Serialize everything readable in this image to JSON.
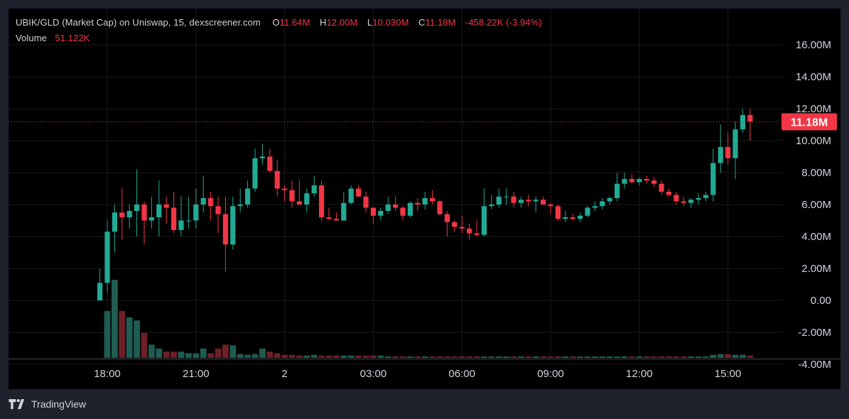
{
  "legend": {
    "pair": "UBIK/GLD (Market Cap) on Uniswap, 15, dexscreener.com",
    "o_label": "O",
    "o_value": "11.64M",
    "h_label": "H",
    "h_value": "12.00M",
    "l_label": "L",
    "l_value": "10.030M",
    "c_label": "C",
    "c_value": "11.18M",
    "change": "-458.22K (-3.94%)",
    "volume_label": "Volume",
    "volume_value": "51.122K"
  },
  "footer": {
    "brand": "TradingView",
    "logo_icon": "tradingview-logo-icon"
  },
  "colors": {
    "up": "#22ab94",
    "down": "#f23645",
    "up_volume": "#1f5c52",
    "down_volume": "#6e1f27",
    "background": "#000000",
    "frame": "#1e222d",
    "text": "#d1d4dc",
    "grid": "#1a1a1a"
  },
  "chart_data": {
    "type": "candlestick",
    "title": "UBIK/GLD (Market Cap) on Uniswap, 15, dexscreener.com",
    "interval_minutes": 15,
    "first_bar_time": "17:45",
    "y_axis": {
      "ticks": [
        "16.00M",
        "14.00M",
        "12.00M",
        "10.00M",
        "8.00M",
        "6.00M",
        "4.00M",
        "2.00M",
        "0.00",
        "-2.00M",
        "-4.00M"
      ],
      "range_millions": [
        -4.4,
        17.2
      ]
    },
    "x_axis": {
      "ticks": [
        "18:00",
        "21:00",
        "2",
        "03:00",
        "06:00",
        "09:00",
        "12:00",
        "15:00"
      ]
    },
    "last_price_label": "11.18M",
    "last_price": 11.18,
    "candles_millions_ohlc": [
      [
        0.0,
        2.0,
        0.0,
        1.1
      ],
      [
        1.1,
        5.0,
        0.5,
        4.3
      ],
      [
        4.3,
        6.0,
        3.0,
        5.5
      ],
      [
        5.5,
        7.0,
        3.8,
        5.2
      ],
      [
        5.2,
        6.0,
        4.5,
        5.6
      ],
      [
        5.6,
        8.2,
        4.0,
        6.0
      ],
      [
        6.0,
        6.2,
        3.5,
        5.0
      ],
      [
        5.0,
        6.5,
        4.5,
        5.2
      ],
      [
        5.2,
        7.5,
        4.0,
        6.0
      ],
      [
        6.0,
        6.5,
        4.8,
        5.8
      ],
      [
        5.8,
        6.8,
        4.2,
        4.4
      ],
      [
        4.4,
        6.5,
        4.0,
        5.0
      ],
      [
        5.0,
        6.5,
        4.5,
        5.0
      ],
      [
        5.0,
        7.0,
        4.5,
        6.0
      ],
      [
        6.0,
        7.8,
        5.5,
        6.4
      ],
      [
        6.4,
        6.8,
        5.0,
        5.9
      ],
      [
        5.9,
        6.5,
        4.2,
        5.4
      ],
      [
        5.4,
        6.5,
        1.8,
        3.5
      ],
      [
        3.5,
        6.5,
        3.2,
        5.9
      ],
      [
        5.9,
        7.0,
        5.5,
        6.0
      ],
      [
        6.0,
        7.5,
        5.8,
        7.0
      ],
      [
        7.0,
        9.5,
        6.8,
        8.9
      ],
      [
        8.9,
        9.8,
        8.5,
        9.0
      ],
      [
        9.0,
        9.5,
        8.0,
        8.1
      ],
      [
        8.1,
        8.8,
        6.5,
        7.0
      ],
      [
        7.0,
        7.2,
        6.2,
        6.9
      ],
      [
        6.9,
        7.5,
        5.8,
        6.2
      ],
      [
        6.2,
        7.5,
        6.0,
        6.0
      ],
      [
        6.0,
        7.0,
        5.5,
        6.7
      ],
      [
        6.7,
        7.8,
        6.5,
        7.2
      ],
      [
        7.2,
        7.5,
        5.0,
        5.2
      ],
      [
        5.2,
        5.8,
        5.0,
        5.1
      ],
      [
        5.1,
        5.5,
        5.0,
        5.0
      ],
      [
        5.0,
        6.8,
        5.0,
        6.1
      ],
      [
        6.1,
        7.2,
        6.0,
        7.0
      ],
      [
        7.0,
        7.2,
        6.5,
        6.5
      ],
      [
        6.5,
        6.8,
        5.5,
        5.8
      ],
      [
        5.8,
        5.8,
        4.8,
        5.3
      ],
      [
        5.3,
        5.8,
        5.0,
        5.6
      ],
      [
        5.6,
        6.5,
        5.4,
        6.0
      ],
      [
        6.0,
        6.5,
        5.6,
        5.8
      ],
      [
        5.8,
        5.9,
        5.0,
        5.3
      ],
      [
        5.3,
        6.2,
        5.2,
        6.1
      ],
      [
        6.1,
        6.4,
        5.6,
        6.0
      ],
      [
        6.0,
        6.8,
        5.7,
        6.4
      ],
      [
        6.4,
        6.9,
        6.0,
        6.2
      ],
      [
        6.2,
        6.3,
        5.3,
        5.4
      ],
      [
        5.4,
        5.6,
        4.0,
        4.9
      ],
      [
        4.9,
        5.0,
        4.3,
        4.6
      ],
      [
        4.6,
        5.3,
        4.2,
        4.5
      ],
      [
        4.5,
        4.8,
        3.8,
        4.2
      ],
      [
        4.2,
        5.0,
        4.0,
        4.1
      ],
      [
        4.1,
        7.0,
        4.0,
        5.9
      ],
      [
        5.9,
        6.6,
        5.7,
        6.0
      ],
      [
        6.0,
        7.0,
        5.8,
        6.5
      ],
      [
        6.5,
        7.0,
        6.0,
        6.5
      ],
      [
        6.5,
        6.8,
        5.8,
        6.1
      ],
      [
        6.1,
        6.5,
        5.8,
        6.3
      ],
      [
        6.3,
        6.6,
        5.9,
        6.2
      ],
      [
        6.2,
        6.5,
        5.5,
        6.3
      ],
      [
        6.3,
        6.5,
        6.0,
        6.0
      ],
      [
        6.0,
        6.1,
        5.4,
        5.9
      ],
      [
        5.9,
        6.0,
        5.0,
        5.1
      ],
      [
        5.1,
        5.6,
        4.9,
        5.2
      ],
      [
        5.2,
        5.4,
        5.0,
        5.1
      ],
      [
        5.1,
        5.5,
        4.9,
        5.3
      ],
      [
        5.3,
        5.9,
        5.2,
        5.8
      ],
      [
        5.8,
        6.2,
        5.6,
        5.9
      ],
      [
        5.9,
        6.4,
        5.7,
        6.2
      ],
      [
        6.2,
        6.5,
        6.0,
        6.4
      ],
      [
        6.4,
        8.0,
        6.2,
        7.3
      ],
      [
        7.3,
        8.0,
        7.0,
        7.6
      ],
      [
        7.6,
        7.9,
        7.3,
        7.4
      ],
      [
        7.4,
        7.7,
        7.2,
        7.6
      ],
      [
        7.6,
        7.8,
        7.3,
        7.5
      ],
      [
        7.5,
        7.7,
        7.1,
        7.3
      ],
      [
        7.3,
        7.5,
        6.6,
        6.8
      ],
      [
        6.8,
        7.0,
        6.5,
        6.6
      ],
      [
        6.6,
        6.8,
        6.0,
        6.2
      ],
      [
        6.2,
        6.5,
        5.9,
        6.1
      ],
      [
        6.1,
        6.4,
        5.8,
        6.3
      ],
      [
        6.3,
        6.7,
        6.0,
        6.4
      ],
      [
        6.4,
        6.8,
        6.2,
        6.6
      ],
      [
        6.6,
        9.5,
        6.2,
        8.6
      ],
      [
        8.6,
        11.0,
        8.0,
        9.6
      ],
      [
        9.6,
        10.5,
        8.5,
        8.9
      ],
      [
        8.9,
        11.2,
        7.6,
        10.7
      ],
      [
        10.7,
        12.0,
        10.5,
        11.6
      ],
      [
        11.6,
        12.0,
        10.0,
        11.2
      ]
    ],
    "volume_bars_relative": [
      0.0,
      0.6,
      1.0,
      0.6,
      0.52,
      0.48,
      0.32,
      0.17,
      0.12,
      0.08,
      0.08,
      0.08,
      0.06,
      0.06,
      0.12,
      0.06,
      0.12,
      0.17,
      0.16,
      0.05,
      0.04,
      0.05,
      0.12,
      0.08,
      0.06,
      0.04,
      0.04,
      0.03,
      0.03,
      0.04,
      0.03,
      0.03,
      0.03,
      0.03,
      0.03,
      0.03,
      0.03,
      0.03,
      0.03,
      0.02,
      0.02,
      0.02,
      0.02,
      0.02,
      0.02,
      0.02,
      0.02,
      0.02,
      0.02,
      0.02,
      0.02,
      0.02,
      0.02,
      0.02,
      0.02,
      0.02,
      0.02,
      0.02,
      0.02,
      0.02,
      0.02,
      0.02,
      0.02,
      0.02,
      0.02,
      0.02,
      0.02,
      0.02,
      0.02,
      0.02,
      0.02,
      0.02,
      0.02,
      0.02,
      0.02,
      0.02,
      0.02,
      0.02,
      0.02,
      0.02,
      0.02,
      0.02,
      0.02,
      0.04,
      0.05,
      0.05,
      0.04,
      0.04,
      0.03
    ]
  }
}
